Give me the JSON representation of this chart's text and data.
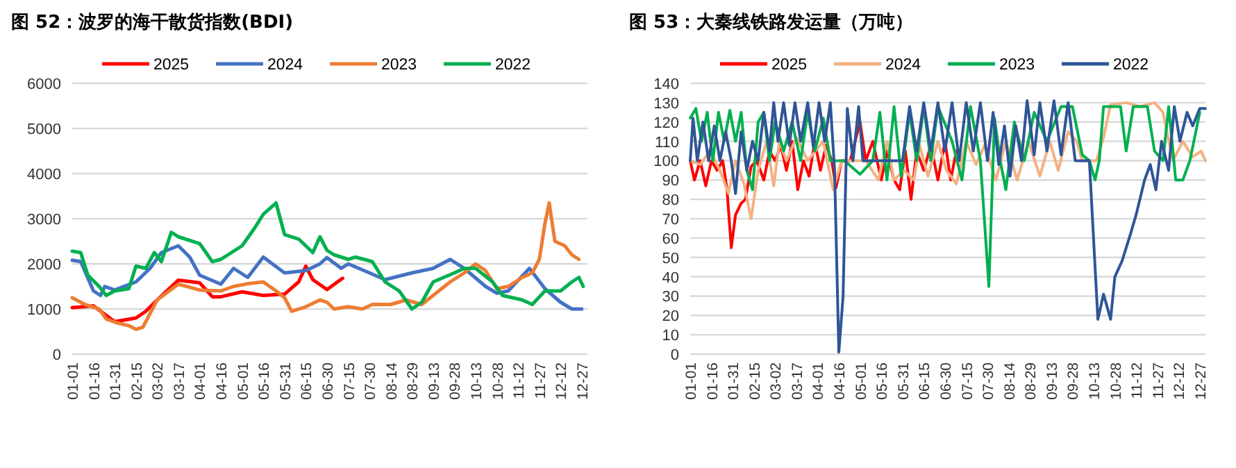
{
  "chart_data": [
    {
      "type": "line",
      "title": "图 52：波罗的海干散货指数(BDI)",
      "legend": "top",
      "grid": "y",
      "xlim": [
        "--01-01",
        "--12-31"
      ],
      "ylim": [
        0,
        6000
      ],
      "yticks": [
        0,
        1000,
        2000,
        3000,
        4000,
        5000,
        6000
      ],
      "xticks": [
        {
          "value": "--01-01",
          "label": "01-01"
        },
        {
          "value": "--01-16",
          "label": "01-16"
        },
        {
          "value": "--01-31",
          "label": "01-31"
        },
        {
          "value": "--02-15",
          "label": "02-15"
        },
        {
          "value": "--03-02",
          "label": "03-02"
        },
        {
          "value": "--03-17",
          "label": "03-17"
        },
        {
          "value": "--04-01",
          "label": "04-01"
        },
        {
          "value": "--04-16",
          "label": "04-16"
        },
        {
          "value": "--05-01",
          "label": "05-01"
        },
        {
          "value": "--05-16",
          "label": "05-16"
        },
        {
          "value": "--05-31",
          "label": "05-31"
        },
        {
          "value": "--06-15",
          "label": "06-15"
        },
        {
          "value": "--06-30",
          "label": "06-30"
        },
        {
          "value": "--07-15",
          "label": "07-15"
        },
        {
          "value": "--07-30",
          "label": "07-30"
        },
        {
          "value": "--08-14",
          "label": "08-14"
        },
        {
          "value": "--08-29",
          "label": "08-29"
        },
        {
          "value": "--09-13",
          "label": "09-13"
        },
        {
          "value": "--09-28",
          "label": "09-28"
        },
        {
          "value": "--10-13",
          "label": "10-13"
        },
        {
          "value": "--10-28",
          "label": "10-28"
        },
        {
          "value": "--11-12",
          "label": "11-12"
        },
        {
          "value": "--11-27",
          "label": "11-27"
        },
        {
          "value": "--12-12",
          "label": "12-12"
        },
        {
          "value": "--12-27",
          "label": "12-27"
        }
      ],
      "series": [
        {
          "name": "2025",
          "color": "#ff0000",
          "x": [
            "--01-01",
            "--01-16",
            "--01-31",
            "--02-15",
            "--02-22",
            "--03-02",
            "--03-17",
            "--04-01",
            "--04-10",
            "--04-16",
            "--05-01",
            "--05-16",
            "--05-31",
            "--06-10",
            "--06-15",
            "--06-20",
            "--06-30",
            "--07-11"
          ],
          "values": [
            1030,
            1070,
            720,
            800,
            950,
            1200,
            1640,
            1580,
            1270,
            1270,
            1380,
            1300,
            1330,
            1600,
            1950,
            1650,
            1430,
            1680
          ]
        },
        {
          "name": "2024",
          "color": "#4472c4",
          "x": [
            "--01-01",
            "--01-07",
            "--01-16",
            "--01-21",
            "--01-24",
            "--01-31",
            "--02-15",
            "--02-25",
            "--03-05",
            "--03-17",
            "--03-25",
            "--04-01",
            "--04-16",
            "--04-25",
            "--05-05",
            "--05-16",
            "--05-31",
            "--06-15",
            "--06-25",
            "--06-30",
            "--07-10",
            "--07-15",
            "--07-30",
            "--08-10",
            "--08-29",
            "--09-13",
            "--09-25",
            "--10-05",
            "--10-20",
            "--10-28",
            "--11-05",
            "--11-20",
            "--12-01",
            "--12-12",
            "--12-20",
            "--12-27"
          ],
          "values": [
            2080,
            2050,
            1400,
            1300,
            1500,
            1420,
            1600,
            1900,
            2250,
            2400,
            2150,
            1750,
            1550,
            1900,
            1700,
            2150,
            1800,
            1850,
            2000,
            2140,
            1900,
            2000,
            1800,
            1650,
            1800,
            1900,
            2100,
            1900,
            1500,
            1350,
            1400,
            1900,
            1450,
            1150,
            1000,
            1000
          ]
        },
        {
          "name": "2023",
          "color": "#ed7d31",
          "x": [
            "--01-01",
            "--01-10",
            "--01-20",
            "--01-25",
            "--02-01",
            "--02-10",
            "--02-15",
            "--02-20",
            "--03-02",
            "--03-17",
            "--04-01",
            "--04-16",
            "--04-25",
            "--05-05",
            "--05-16",
            "--05-25",
            "--05-31",
            "--06-05",
            "--06-15",
            "--06-25",
            "--06-30",
            "--07-05",
            "--07-15",
            "--07-25",
            "--08-01",
            "--08-14",
            "--08-25",
            "--09-05",
            "--09-13",
            "--09-25",
            "--10-05",
            "--10-13",
            "--10-20",
            "--10-28",
            "--11-05",
            "--11-15",
            "--11-22",
            "--11-27",
            "--12-01",
            "--12-04",
            "--12-08",
            "--12-15",
            "--12-20",
            "--12-25"
          ],
          "values": [
            1250,
            1100,
            1000,
            780,
            700,
            630,
            550,
            600,
            1200,
            1550,
            1420,
            1400,
            1500,
            1560,
            1600,
            1400,
            1250,
            950,
            1050,
            1200,
            1150,
            1000,
            1050,
            1000,
            1100,
            1100,
            1200,
            1100,
            1300,
            1600,
            1800,
            2000,
            1850,
            1450,
            1500,
            1700,
            1800,
            2100,
            2900,
            3350,
            2500,
            2400,
            2200,
            2100
          ]
        },
        {
          "name": "2022",
          "color": "#00b050",
          "x": [
            "--01-01",
            "--01-07",
            "--01-12",
            "--01-20",
            "--01-25",
            "--01-31",
            "--02-10",
            "--02-15",
            "--02-22",
            "--02-28",
            "--03-05",
            "--03-12",
            "--03-17",
            "--04-01",
            "--04-10",
            "--04-16",
            "--05-01",
            "--05-10",
            "--05-16",
            "--05-25",
            "--05-31",
            "--06-10",
            "--06-20",
            "--06-25",
            "--06-30",
            "--07-05",
            "--07-15",
            "--07-20",
            "--08-01",
            "--08-10",
            "--08-20",
            "--08-29",
            "--09-05",
            "--09-13",
            "--09-28",
            "--10-05",
            "--10-13",
            "--10-25",
            "--11-01",
            "--11-15",
            "--11-22",
            "--12-01",
            "--12-12",
            "--12-20",
            "--12-25",
            "--12-28"
          ],
          "values": [
            2280,
            2250,
            1750,
            1500,
            1300,
            1400,
            1450,
            1950,
            1900,
            2250,
            2050,
            2700,
            2600,
            2450,
            2050,
            2100,
            2400,
            2800,
            3100,
            3350,
            2650,
            2550,
            2250,
            2600,
            2300,
            2200,
            2100,
            2150,
            2050,
            1600,
            1400,
            1000,
            1150,
            1600,
            1800,
            1900,
            1900,
            1600,
            1300,
            1200,
            1100,
            1400,
            1400,
            1600,
            1700,
            1500
          ]
        }
      ]
    },
    {
      "type": "line",
      "title": "图 53：大秦线铁路发运量（万吨）",
      "legend": "top",
      "grid": "y",
      "xlim": [
        "--01-01",
        "--12-31"
      ],
      "ylim": [
        0,
        140
      ],
      "yticks": [
        0,
        10,
        20,
        30,
        40,
        50,
        60,
        70,
        80,
        90,
        100,
        110,
        120,
        130,
        140
      ],
      "xticks": [
        {
          "value": "--01-01",
          "label": "01-01"
        },
        {
          "value": "--01-16",
          "label": "01-16"
        },
        {
          "value": "--01-31",
          "label": "01-31"
        },
        {
          "value": "--02-15",
          "label": "02-15"
        },
        {
          "value": "--03-02",
          "label": "03-02"
        },
        {
          "value": "--03-17",
          "label": "03-17"
        },
        {
          "value": "--04-01",
          "label": "04-01"
        },
        {
          "value": "--04-16",
          "label": "04-16"
        },
        {
          "value": "--05-01",
          "label": "05-01"
        },
        {
          "value": "--05-16",
          "label": "05-16"
        },
        {
          "value": "--05-31",
          "label": "05-31"
        },
        {
          "value": "--06-15",
          "label": "06-15"
        },
        {
          "value": "--06-30",
          "label": "06-30"
        },
        {
          "value": "--07-15",
          "label": "07-15"
        },
        {
          "value": "--07-30",
          "label": "07-30"
        },
        {
          "value": "--08-14",
          "label": "08-14"
        },
        {
          "value": "--08-29",
          "label": "08-29"
        },
        {
          "value": "--09-13",
          "label": "09-13"
        },
        {
          "value": "--09-28",
          "label": "09-28"
        },
        {
          "value": "--10-13",
          "label": "10-13"
        },
        {
          "value": "--10-28",
          "label": "10-28"
        },
        {
          "value": "--11-12",
          "label": "11-12"
        },
        {
          "value": "--11-27",
          "label": "11-27"
        },
        {
          "value": "--12-12",
          "label": "12-12"
        },
        {
          "value": "--12-27",
          "label": "12-27"
        }
      ],
      "series": [
        {
          "name": "2025",
          "color": "#ff0000",
          "x": [
            "--01-01",
            "--01-04",
            "--01-08",
            "--01-12",
            "--01-16",
            "--01-20",
            "--01-24",
            "--01-27",
            "--01-30",
            "--02-02",
            "--02-06",
            "--02-09",
            "--02-13",
            "--02-17",
            "--02-22",
            "--02-26",
            "--03-02",
            "--03-06",
            "--03-10",
            "--03-14",
            "--03-18",
            "--03-22",
            "--03-26",
            "--03-30",
            "--04-03",
            "--04-07",
            "--04-11",
            "--04-14",
            "--04-18",
            "--04-24",
            "--05-01",
            "--05-05",
            "--05-10",
            "--05-16",
            "--05-20",
            "--05-25",
            "--05-29",
            "--06-02",
            "--06-06",
            "--06-10",
            "--06-15",
            "--06-20",
            "--06-25",
            "--06-30",
            "--07-04",
            "--07-08"
          ],
          "values": [
            100,
            90,
            100,
            87,
            100,
            95,
            100,
            85,
            55,
            72,
            78,
            80,
            97,
            100,
            90,
            105,
            100,
            108,
            95,
            110,
            85,
            100,
            92,
            110,
            95,
            108,
            100,
            86,
            100,
            100,
            120,
            100,
            110,
            90,
            105,
            90,
            85,
            105,
            80,
            105,
            95,
            108,
            90,
            110,
            90,
            105
          ]
        },
        {
          "name": "2024",
          "color": "#f4b183",
          "x": [
            "--01-01",
            "--01-08",
            "--01-15",
            "--01-22",
            "--01-28",
            "--02-02",
            "--02-08",
            "--02-13",
            "--02-18",
            "--02-24",
            "--03-01",
            "--03-05",
            "--03-10",
            "--03-17",
            "--03-25",
            "--04-05",
            "--04-12",
            "--04-18",
            "--04-25",
            "--05-05",
            "--05-14",
            "--05-20",
            "--05-25",
            "--06-01",
            "--06-08",
            "--06-12",
            "--06-18",
            "--06-25",
            "--07-01",
            "--07-08",
            "--07-15",
            "--07-22",
            "--07-28",
            "--08-05",
            "--08-12",
            "--08-20",
            "--08-28",
            "--09-05",
            "--09-12",
            "--09-18",
            "--09-25",
            "--10-01",
            "--10-05",
            "--10-15",
            "--10-20",
            "--10-25",
            "--11-05",
            "--11-15",
            "--11-25",
            "--12-01",
            "--12-08",
            "--12-15",
            "--12-22",
            "--12-28",
            "--12-31"
          ],
          "values": [
            100,
            98,
            105,
            95,
            83,
            100,
            88,
            70,
            95,
            110,
            87,
            110,
            100,
            112,
            100,
            110,
            85,
            100,
            100,
            100,
            90,
            110,
            90,
            95,
            90,
            108,
            92,
            110,
            95,
            88,
            110,
            98,
            108,
            90,
            110,
            90,
            110,
            92,
            110,
            95,
            115,
            110,
            100,
            100,
            112,
            129,
            130,
            128,
            130,
            125,
            100,
            110,
            102,
            105,
            100
          ]
        },
        {
          "name": "2023",
          "color": "#00b050",
          "x": [
            "--01-01",
            "--01-05",
            "--01-09",
            "--01-13",
            "--01-17",
            "--01-21",
            "--01-25",
            "--01-29",
            "--02-02",
            "--02-06",
            "--02-10",
            "--02-14",
            "--02-18",
            "--02-22",
            "--02-26",
            "--03-02",
            "--03-08",
            "--03-14",
            "--03-20",
            "--03-25",
            "--03-30",
            "--04-05",
            "--04-10",
            "--04-20",
            "--05-01",
            "--05-10",
            "--05-15",
            "--05-20",
            "--05-25",
            "--05-30",
            "--06-05",
            "--06-10",
            "--06-15",
            "--06-20",
            "--06-25",
            "--07-05",
            "--07-12",
            "--07-18",
            "--07-25",
            "--07-31",
            "--08-04",
            "--08-08",
            "--08-12",
            "--08-18",
            "--08-25",
            "--09-01",
            "--09-10",
            "--09-20",
            "--09-28",
            "--10-05",
            "--10-10",
            "--10-14",
            "--10-17",
            "--10-20",
            "--11-01",
            "--11-05",
            "--11-10",
            "--11-20",
            "--11-25",
            "--12-01",
            "--12-05",
            "--12-10",
            "--12-15",
            "--12-20",
            "--12-27"
          ],
          "values": [
            122,
            127,
            110,
            125,
            100,
            125,
            110,
            126,
            110,
            125,
            95,
            85,
            120,
            125,
            100,
            120,
            105,
            120,
            100,
            125,
            105,
            122,
            100,
            100,
            93,
            100,
            125,
            90,
            128,
            92,
            125,
            100,
            128,
            100,
            128,
            110,
            90,
            128,
            100,
            35,
            122,
            100,
            85,
            120,
            100,
            125,
            110,
            128,
            128,
            103,
            100,
            90,
            100,
            128,
            128,
            105,
            128,
            128,
            105,
            100,
            128,
            90,
            90,
            100,
            125
          ]
        },
        {
          "name": "2022",
          "color": "#2f5597",
          "x": [
            "--01-01",
            "--01-03",
            "--01-06",
            "--01-10",
            "--01-14",
            "--01-18",
            "--01-22",
            "--01-26",
            "--01-30",
            "--02-02",
            "--02-06",
            "--02-10",
            "--02-14",
            "--02-18",
            "--02-22",
            "--02-26",
            "--03-01",
            "--03-04",
            "--03-08",
            "--03-12",
            "--03-16",
            "--03-20",
            "--03-25",
            "--03-29",
            "--04-02",
            "--04-06",
            "--04-10",
            "--04-13",
            "--04-16",
            "--04-19",
            "--04-22",
            "--04-26",
            "--04-30",
            "--05-03",
            "--05-15",
            "--05-31",
            "--06-05",
            "--06-10",
            "--06-15",
            "--06-20",
            "--06-25",
            "--06-30",
            "--07-05",
            "--07-10",
            "--07-15",
            "--07-20",
            "--07-25",
            "--07-30",
            "--08-03",
            "--08-07",
            "--08-11",
            "--08-15",
            "--08-19",
            "--08-23",
            "--08-27",
            "--09-01",
            "--09-05",
            "--09-10",
            "--09-15",
            "--09-20",
            "--09-25",
            "--09-30",
            "--10-10",
            "--10-16",
            "--10-20",
            "--10-25",
            "--10-28",
            "--11-02",
            "--11-08",
            "--11-12",
            "--11-18",
            "--11-22",
            "--11-26",
            "--11-30",
            "--12-05",
            "--12-09",
            "--12-13",
            "--12-18",
            "--12-22",
            "--12-27",
            "--12-31"
          ],
          "values": [
            100,
            122,
            100,
            120,
            100,
            118,
            100,
            115,
            100,
            83,
            115,
            95,
            110,
            100,
            125,
            105,
            130,
            110,
            130,
            108,
            130,
            110,
            130,
            107,
            130,
            110,
            130,
            95,
            1,
            30,
            127,
            100,
            128,
            100,
            100,
            100,
            128,
            105,
            130,
            105,
            130,
            105,
            130,
            100,
            130,
            105,
            130,
            100,
            125,
            98,
            118,
            92,
            118,
            100,
            131,
            103,
            130,
            105,
            131,
            103,
            130,
            100,
            100,
            18,
            31,
            18,
            40,
            48,
            62,
            72,
            90,
            98,
            85,
            110,
            95,
            128,
            110,
            125,
            118,
            127,
            127
          ]
        }
      ]
    }
  ]
}
